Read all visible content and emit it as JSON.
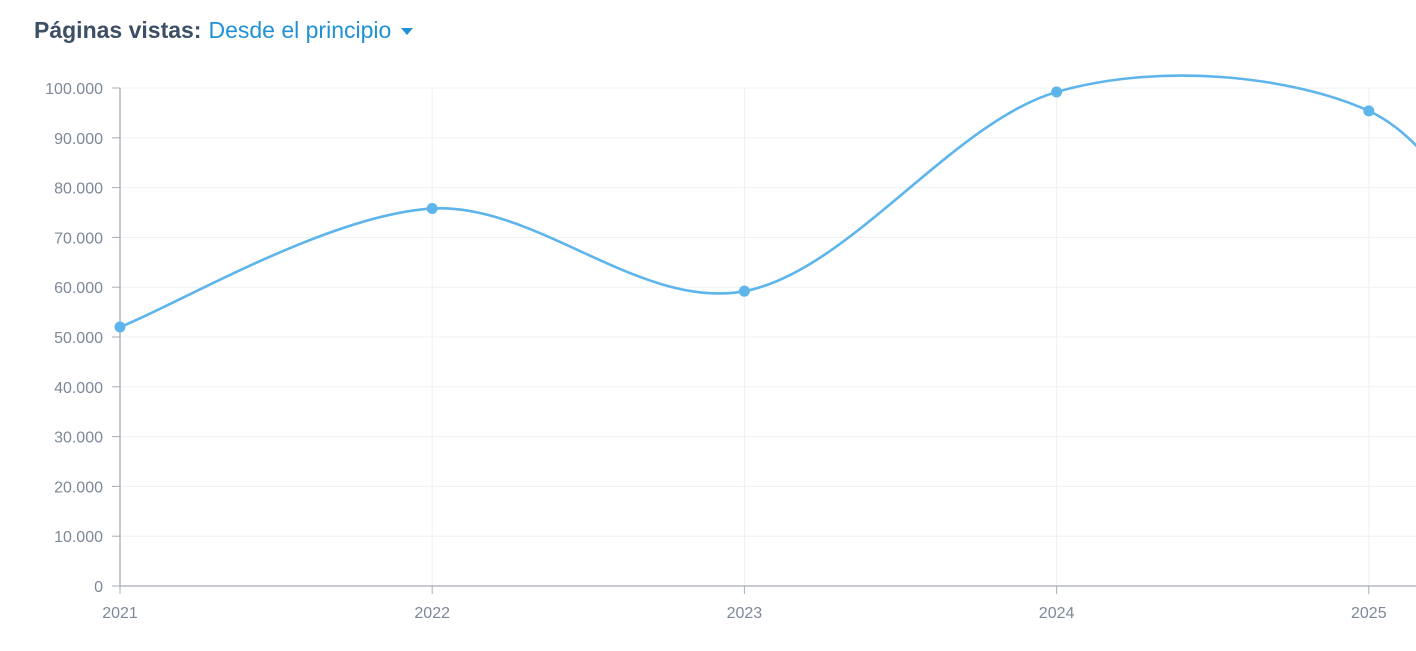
{
  "header": {
    "label": "Páginas vistas:",
    "range_selected": "Desde el principio",
    "caret_icon": "chevron-down-icon"
  },
  "colors": {
    "series_line": "#5db5ec",
    "grid": "#eef0f3",
    "axis": "#a7adb5",
    "tick_text": "#7d8898",
    "header_label": "#3d4f66",
    "header_link": "#1f92d6"
  },
  "chart_data": {
    "type": "line",
    "title": "",
    "xlabel": "",
    "ylabel": "",
    "categories": [
      "2021",
      "2022",
      "2023",
      "2024",
      "2025"
    ],
    "y_ticks": [
      "0",
      "10.000",
      "20.000",
      "30.000",
      "40.000",
      "50.000",
      "60.000",
      "70.000",
      "80.000",
      "90.000",
      "100.000"
    ],
    "ylim": [
      0,
      100000
    ],
    "grid": true,
    "legend": "none",
    "series": [
      {
        "values": [
          52000,
          75800,
          59200,
          99200,
          95400
        ]
      }
    ],
    "trailing_trend": "line continues downward past the right edge after 2025"
  }
}
